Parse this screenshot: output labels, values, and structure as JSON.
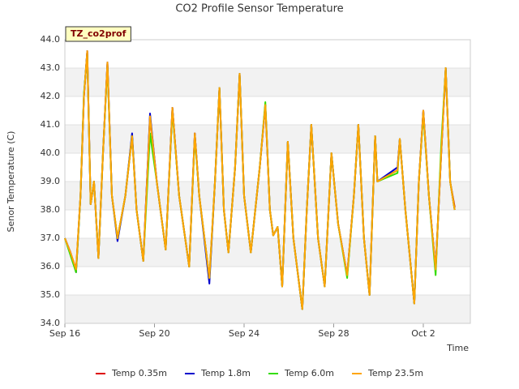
{
  "chart_data": {
    "type": "line",
    "title": "CO2 Profile Sensor Temperature",
    "y_label": "Senor Temperature (C)",
    "x_label": "Time",
    "annotation": "TZ_co2prof",
    "grid": true,
    "legend": "bottom",
    "xlim": [
      0,
      18.1
    ],
    "xticks": [
      {
        "value": 0,
        "label": "Sep 16"
      },
      {
        "value": 4,
        "label": "Sep 20"
      },
      {
        "value": 8,
        "label": "Sep 24"
      },
      {
        "value": 12,
        "label": "Sep 28"
      },
      {
        "value": 16,
        "label": "Oct 2"
      }
    ],
    "ylim": [
      34,
      44
    ],
    "yticks": [
      {
        "value": 34,
        "label": "34.0"
      },
      {
        "value": 35,
        "label": "35.0"
      },
      {
        "value": 36,
        "label": "36.0"
      },
      {
        "value": 37,
        "label": "37.0"
      },
      {
        "value": 38,
        "label": "38.0"
      },
      {
        "value": 39,
        "label": "39.0"
      },
      {
        "value": 40,
        "label": "40.0"
      },
      {
        "value": 41,
        "label": "41.0"
      },
      {
        "value": 42,
        "label": "42.0"
      },
      {
        "value": 43,
        "label": "43.0"
      },
      {
        "value": 44,
        "label": "44.0"
      }
    ],
    "x": [
      0,
      0.25,
      0.5,
      0.7,
      0.85,
      1.0,
      1.15,
      1.3,
      1.5,
      1.7,
      1.9,
      2.1,
      2.35,
      2.7,
      3.0,
      3.2,
      3.5,
      3.8,
      4.1,
      4.5,
      4.8,
      5.1,
      5.55,
      5.8,
      6.0,
      6.45,
      6.7,
      6.9,
      7.1,
      7.3,
      7.6,
      7.8,
      8.0,
      8.3,
      8.7,
      8.95,
      9.15,
      9.3,
      9.5,
      9.7,
      9.95,
      10.2,
      10.6,
      10.8,
      11.0,
      11.3,
      11.6,
      11.9,
      12.2,
      12.6,
      12.9,
      13.1,
      13.35,
      13.6,
      13.85,
      13.95,
      14.85,
      14.95,
      15.2,
      15.6,
      15.8,
      16.0,
      16.25,
      16.55,
      16.8,
      17.0,
      17.2,
      17.4
    ],
    "series": [
      {
        "name": "Temp 0.35m",
        "color": "#dd0000",
        "values": [
          37.0,
          36.5,
          35.9,
          38.5,
          42.0,
          43.6,
          38.2,
          39.0,
          36.3,
          40.0,
          43.2,
          38.5,
          37.0,
          38.5,
          40.6,
          38.0,
          36.2,
          41.3,
          39.0,
          36.6,
          41.6,
          38.5,
          36.0,
          40.7,
          38.5,
          35.6,
          39.0,
          42.3,
          38.0,
          36.5,
          39.5,
          42.8,
          38.5,
          36.5,
          39.5,
          41.7,
          38.0,
          37.1,
          37.4,
          35.3,
          40.4,
          37.0,
          34.5,
          38.0,
          41.0,
          37.0,
          35.3,
          40.0,
          37.5,
          35.7,
          38.5,
          41.0,
          37.0,
          35.0,
          40.6,
          39.0,
          39.4,
          40.5,
          38.0,
          34.7,
          39.0,
          41.5,
          38.5,
          35.9,
          40.0,
          43.0,
          39.0,
          38.1
        ]
      },
      {
        "name": "Temp 1.8m",
        "color": "#0000cc",
        "values": [
          37.0,
          36.5,
          35.8,
          38.5,
          42.0,
          43.6,
          38.2,
          39.0,
          36.3,
          40.0,
          43.2,
          38.5,
          36.9,
          38.5,
          40.7,
          38.0,
          36.2,
          41.4,
          39.0,
          36.6,
          41.6,
          38.5,
          36.0,
          40.7,
          38.5,
          35.4,
          39.0,
          42.3,
          38.0,
          36.5,
          39.5,
          42.8,
          38.5,
          36.5,
          39.5,
          41.7,
          38.0,
          37.1,
          37.4,
          35.3,
          40.4,
          37.0,
          34.5,
          38.0,
          41.0,
          37.0,
          35.3,
          40.0,
          37.5,
          35.7,
          38.5,
          41.0,
          37.0,
          35.0,
          40.6,
          39.0,
          39.5,
          40.5,
          38.0,
          34.7,
          39.0,
          41.5,
          38.5,
          35.9,
          40.0,
          43.0,
          39.0,
          38.0
        ]
      },
      {
        "name": "Temp 6.0m",
        "color": "#33dd00",
        "values": [
          37.0,
          36.4,
          35.8,
          38.5,
          42.1,
          43.5,
          38.2,
          39.0,
          36.3,
          40.0,
          43.1,
          38.5,
          37.0,
          38.5,
          40.6,
          38.0,
          36.2,
          40.7,
          39.0,
          36.6,
          41.5,
          38.5,
          36.0,
          40.6,
          38.5,
          35.6,
          39.0,
          42.3,
          38.0,
          36.5,
          39.5,
          42.8,
          38.5,
          36.5,
          39.5,
          41.8,
          38.0,
          37.1,
          37.4,
          35.3,
          40.4,
          37.0,
          34.5,
          38.0,
          41.0,
          37.0,
          35.3,
          40.0,
          37.5,
          35.6,
          38.5,
          41.0,
          37.0,
          35.0,
          40.6,
          39.0,
          39.3,
          40.5,
          38.0,
          34.7,
          39.0,
          41.4,
          38.5,
          35.7,
          40.3,
          43.0,
          39.0,
          38.0
        ]
      },
      {
        "name": "Temp 23.5m",
        "color": "#ffa500",
        "values": [
          37.0,
          36.5,
          35.9,
          38.5,
          42.0,
          43.6,
          38.2,
          39.0,
          36.3,
          40.0,
          43.2,
          38.5,
          37.0,
          38.5,
          40.6,
          38.0,
          36.2,
          41.3,
          39.0,
          36.6,
          41.6,
          38.5,
          36.0,
          40.7,
          38.5,
          35.6,
          39.0,
          42.3,
          38.0,
          36.5,
          39.5,
          42.8,
          38.5,
          36.5,
          39.5,
          41.7,
          38.0,
          37.1,
          37.4,
          35.3,
          40.4,
          37.0,
          34.5,
          38.0,
          41.0,
          37.0,
          35.3,
          40.0,
          37.5,
          35.7,
          38.5,
          41.0,
          37.0,
          35.0,
          40.6,
          39.0,
          39.4,
          40.5,
          38.0,
          34.7,
          39.0,
          41.5,
          38.5,
          35.9,
          40.0,
          43.0,
          39.0,
          38.0
        ]
      }
    ]
  }
}
